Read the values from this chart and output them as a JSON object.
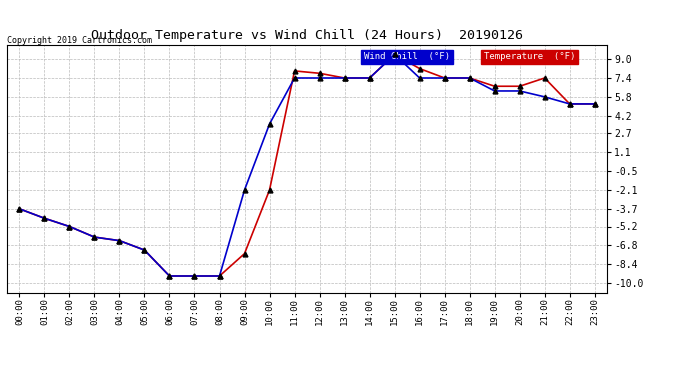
{
  "title": "Outdoor Temperature vs Wind Chill (24 Hours)  20190126",
  "copyright": "Copyright 2019 Cartronics.com",
  "x_labels": [
    "00:00",
    "01:00",
    "02:00",
    "03:00",
    "04:00",
    "05:00",
    "06:00",
    "07:00",
    "08:00",
    "09:00",
    "10:00",
    "11:00",
    "12:00",
    "13:00",
    "14:00",
    "15:00",
    "16:00",
    "17:00",
    "18:00",
    "19:00",
    "20:00",
    "21:00",
    "22:00",
    "23:00"
  ],
  "temperature": [
    -3.7,
    -4.5,
    -5.2,
    -6.1,
    -6.4,
    -7.2,
    -9.4,
    -9.4,
    -9.4,
    -7.5,
    -2.1,
    8.0,
    7.8,
    7.4,
    7.4,
    9.4,
    8.2,
    7.4,
    7.4,
    6.7,
    6.7,
    7.4,
    5.2,
    5.2
  ],
  "wind_chill": [
    -3.7,
    -4.5,
    -5.2,
    -6.1,
    -6.4,
    -7.2,
    -9.4,
    -9.4,
    -9.4,
    -2.1,
    3.5,
    7.4,
    7.4,
    7.4,
    7.4,
    9.4,
    7.4,
    7.4,
    7.4,
    6.3,
    6.3,
    5.8,
    5.2,
    5.2
  ],
  "temp_color": "#cc0000",
  "wind_chill_color": "#0000cc",
  "marker_color": "black",
  "yticks": [
    9.0,
    7.4,
    5.8,
    4.2,
    2.7,
    1.1,
    -0.5,
    -2.1,
    -3.7,
    -5.2,
    -6.8,
    -8.4,
    -10.0
  ],
  "ylim": [
    -10.8,
    10.2
  ],
  "background_color": "#ffffff",
  "grid_color": "#bbbbbb",
  "legend_wind_bg": "#0000cc",
  "legend_temp_bg": "#cc0000",
  "legend_wind_text": "Wind Chill  (°F)",
  "legend_temp_text": "Temperature  (°F)"
}
